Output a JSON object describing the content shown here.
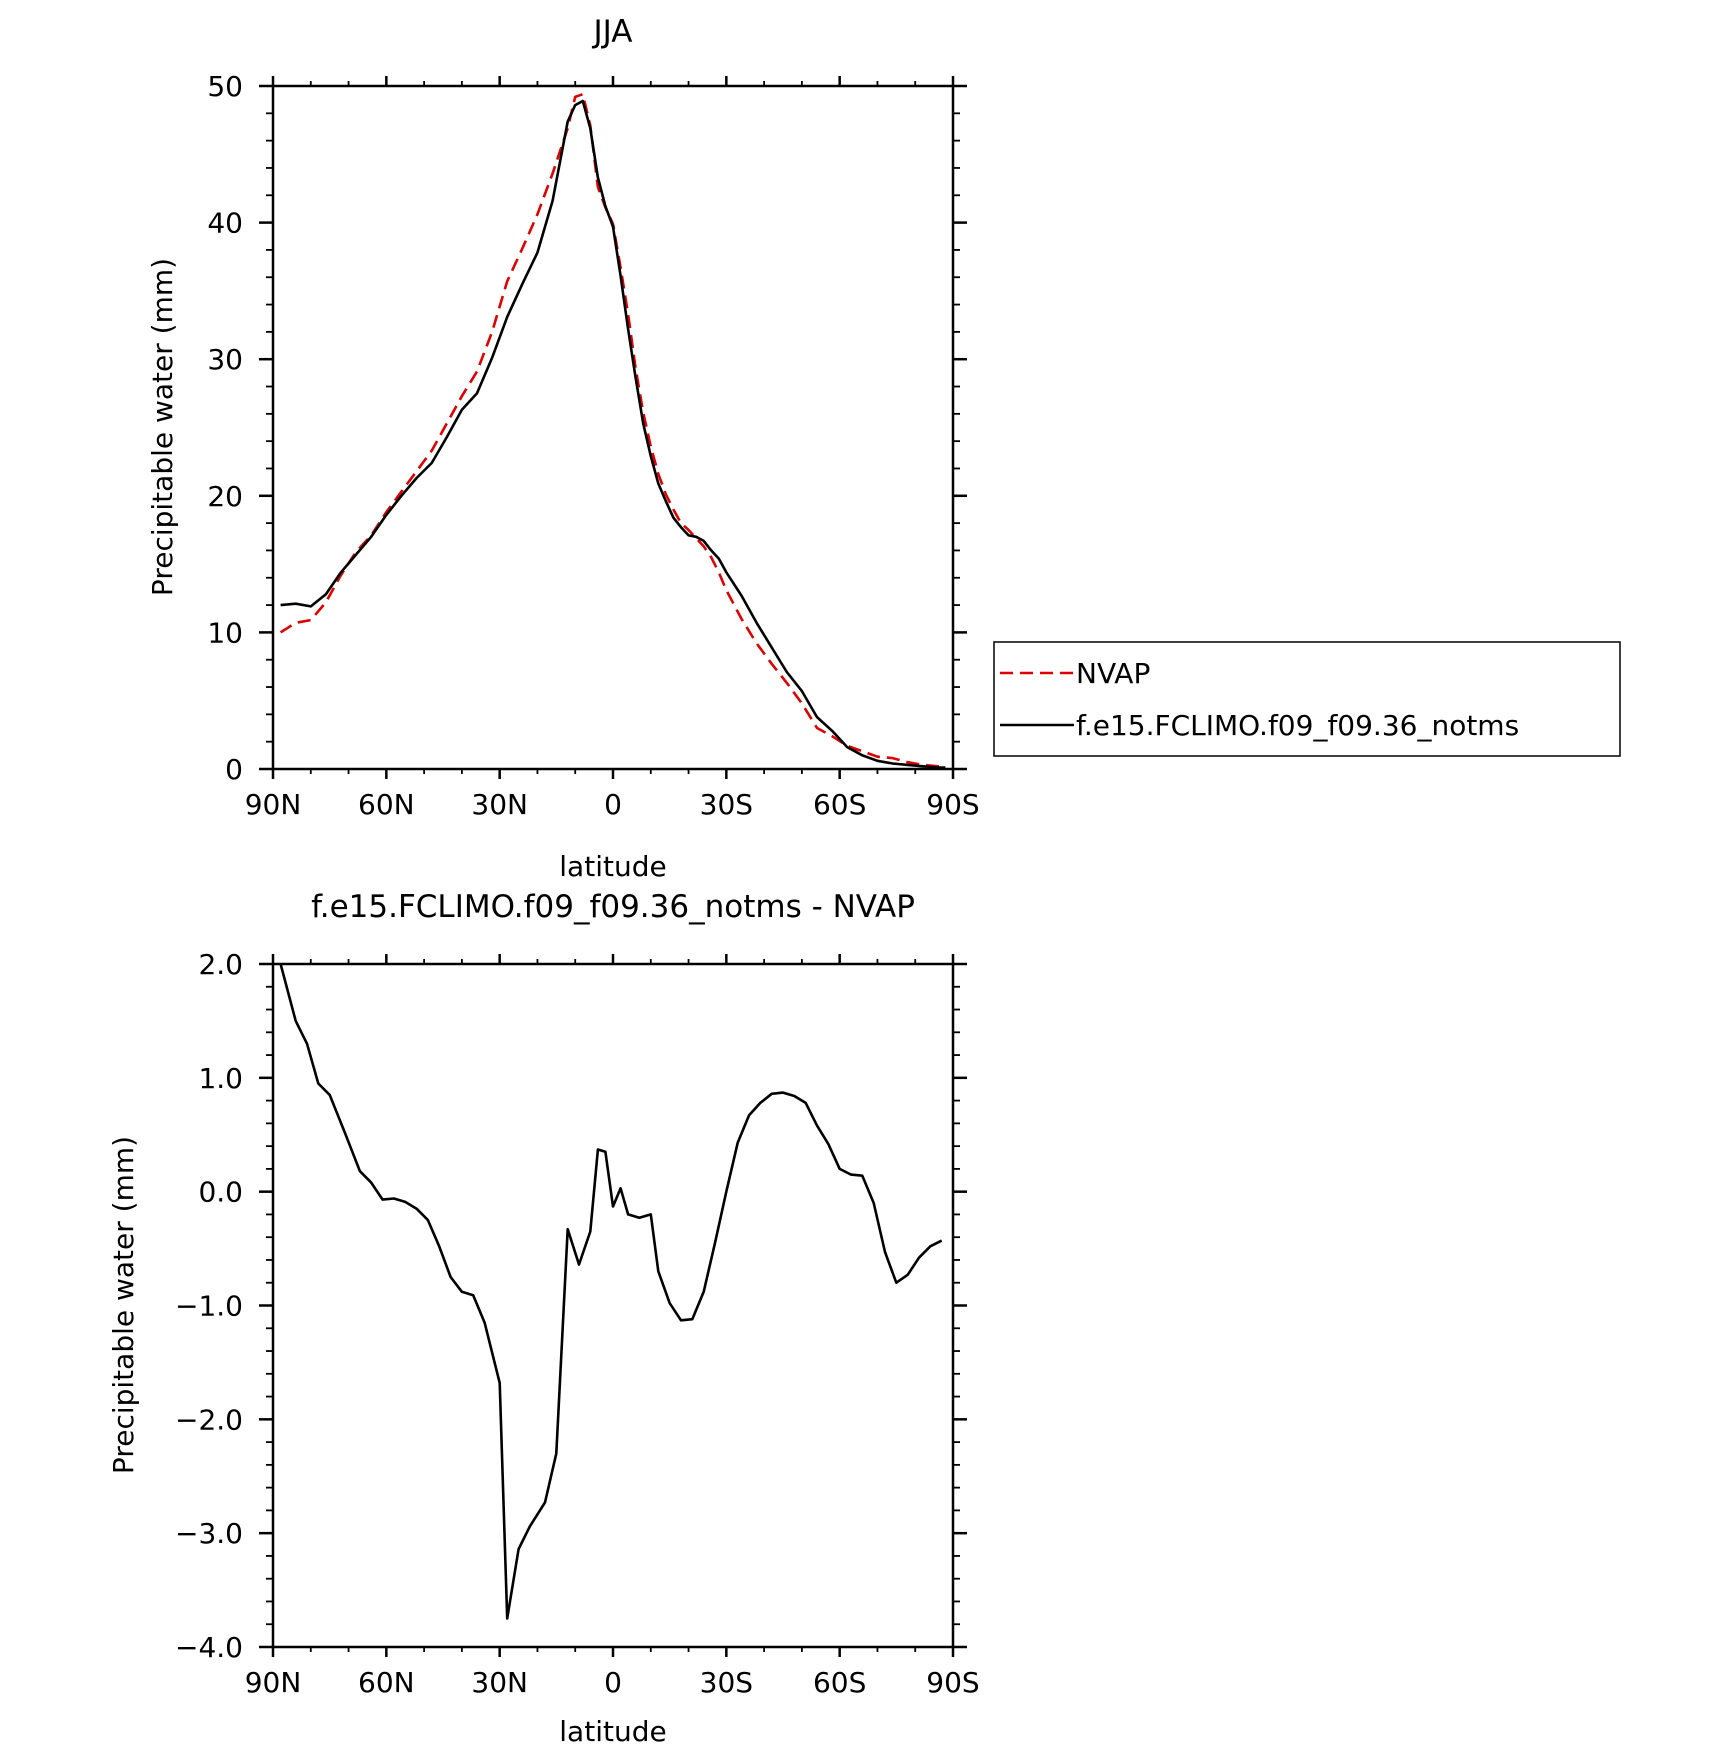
{
  "chart_data": [
    {
      "type": "line",
      "title": "JJA",
      "xlabel": "latitude",
      "ylabel": "Precipitable water (mm)",
      "xlim": [
        90,
        -90
      ],
      "ylim": [
        0,
        50
      ],
      "x_ticks": [
        90,
        60,
        30,
        0,
        -30,
        -60,
        -90
      ],
      "x_tick_labels": [
        "90N",
        "60N",
        "30N",
        "0",
        "30S",
        "60S",
        "90S"
      ],
      "y_ticks": [
        0,
        10,
        20,
        30,
        40,
        50
      ],
      "y_tick_labels": [
        "0",
        "10",
        "20",
        "30",
        "40",
        "50"
      ],
      "legend_position": "right",
      "series": [
        {
          "name": "NVAP",
          "color": "#dd0000",
          "dash": "dashed",
          "x": [
            88,
            84,
            80,
            76,
            72,
            68,
            64,
            60,
            56,
            52,
            48,
            44,
            40,
            36,
            32,
            28,
            24,
            20,
            16,
            12,
            10,
            8,
            6,
            4,
            2,
            0,
            -2,
            -4,
            -6,
            -8,
            -10,
            -12,
            -14,
            -16,
            -18,
            -20,
            -22,
            -24,
            -26,
            -28,
            -30,
            -34,
            -38,
            -42,
            -46,
            -50,
            -54,
            -58,
            -62,
            -66,
            -70,
            -74,
            -78,
            -82,
            -86,
            -88
          ],
          "y": [
            10.0,
            10.7,
            10.9,
            12.2,
            14.2,
            15.9,
            17.1,
            18.8,
            20.3,
            21.8,
            23.3,
            25.3,
            27.3,
            29.1,
            32.0,
            35.7,
            38.1,
            40.6,
            43.6,
            46.9,
            49.2,
            49.4,
            47.1,
            42.6,
            41.1,
            39.9,
            36.7,
            33.3,
            29.3,
            26.1,
            23.6,
            21.6,
            20.1,
            19.0,
            18.0,
            17.5,
            16.9,
            16.3,
            15.5,
            14.4,
            13.1,
            11.0,
            9.2,
            7.7,
            6.3,
            4.8,
            3.0,
            2.4,
            1.7,
            1.3,
            0.9,
            0.8,
            0.5,
            0.3,
            0.2,
            0.2
          ]
        },
        {
          "name": "f.e15.FCLIMO.f09_f09.36_notms",
          "color": "#000000",
          "dash": "solid",
          "x": [
            88,
            84,
            80,
            76,
            72,
            68,
            64,
            60,
            56,
            52,
            48,
            44,
            40,
            36,
            32,
            28,
            24,
            20,
            16,
            12,
            10,
            8,
            6,
            4,
            2,
            0,
            -2,
            -4,
            -6,
            -8,
            -10,
            -12,
            -14,
            -16,
            -18,
            -20,
            -22,
            -24,
            -26,
            -28,
            -30,
            -34,
            -38,
            -42,
            -46,
            -50,
            -54,
            -58,
            -62,
            -66,
            -70,
            -74,
            -78,
            -82,
            -86,
            -88
          ],
          "y": [
            12.0,
            12.1,
            11.9,
            12.8,
            14.4,
            15.7,
            17.0,
            18.6,
            20.0,
            21.3,
            22.4,
            24.3,
            26.3,
            27.5,
            30.1,
            33.1,
            35.5,
            37.8,
            41.6,
            47.4,
            48.6,
            48.9,
            46.9,
            43.3,
            41.2,
            39.7,
            36.1,
            32.2,
            28.6,
            25.3,
            22.9,
            20.9,
            19.6,
            18.4,
            17.7,
            17.1,
            17.0,
            16.7,
            16.0,
            15.4,
            14.4,
            12.7,
            10.7,
            8.9,
            7.1,
            5.7,
            3.8,
            2.8,
            1.6,
            1.0,
            0.6,
            0.4,
            0.3,
            0.2,
            0.1,
            0.1
          ]
        }
      ]
    },
    {
      "type": "line",
      "title": "f.e15.FCLIMO.f09_f09.36_notms - NVAP",
      "xlabel": "latitude",
      "ylabel": "Precipitable water (mm)",
      "xlim": [
        90,
        -90
      ],
      "ylim": [
        -4.0,
        2.0
      ],
      "x_ticks": [
        90,
        60,
        30,
        0,
        -30,
        -60,
        -90
      ],
      "x_tick_labels": [
        "90N",
        "60N",
        "30N",
        "0",
        "30S",
        "60S",
        "90S"
      ],
      "y_ticks": [
        2.0,
        1.0,
        0.0,
        -1.0,
        -2.0,
        -3.0,
        -4.0
      ],
      "y_tick_labels": [
        "2.0",
        "1.0",
        "0.0",
        "−1.0",
        "−2.0",
        "−3.0",
        "−4.0"
      ],
      "series": [
        {
          "color": "#000000",
          "dash": "solid",
          "x": [
            88,
            84,
            81,
            78,
            75,
            71,
            67,
            64,
            61,
            58,
            55,
            52,
            49,
            46,
            43,
            40,
            37,
            34,
            30,
            28,
            25,
            22,
            18,
            15,
            12,
            9,
            6,
            4,
            2,
            0,
            -2,
            -4,
            -7,
            -10,
            -12,
            -15,
            -18,
            -21,
            -24,
            -27,
            -30,
            -33,
            -36,
            -39,
            -42,
            -45,
            -48,
            -51,
            -54,
            -57,
            -60,
            -63,
            -66,
            -69,
            -72,
            -75,
            -78,
            -81,
            -84,
            -87
          ],
          "y": [
            2.0,
            1.5,
            1.3,
            0.95,
            0.85,
            0.52,
            0.18,
            0.08,
            -0.07,
            -0.06,
            -0.09,
            -0.15,
            -0.25,
            -0.48,
            -0.75,
            -0.88,
            -0.91,
            -1.15,
            -1.68,
            -3.75,
            -3.14,
            -2.94,
            -2.73,
            -2.3,
            -0.33,
            -0.64,
            -0.35,
            0.37,
            0.35,
            -0.13,
            0.03,
            -0.2,
            -0.23,
            -0.2,
            -0.7,
            -0.98,
            -1.13,
            -1.12,
            -0.88,
            -0.45,
            0.0,
            0.43,
            0.67,
            0.78,
            0.86,
            0.87,
            0.84,
            0.78,
            0.58,
            0.42,
            0.2,
            0.15,
            0.14,
            -0.1,
            -0.53,
            -0.8,
            -0.73,
            -0.58,
            -0.48,
            -0.43
          ]
        }
      ]
    }
  ]
}
